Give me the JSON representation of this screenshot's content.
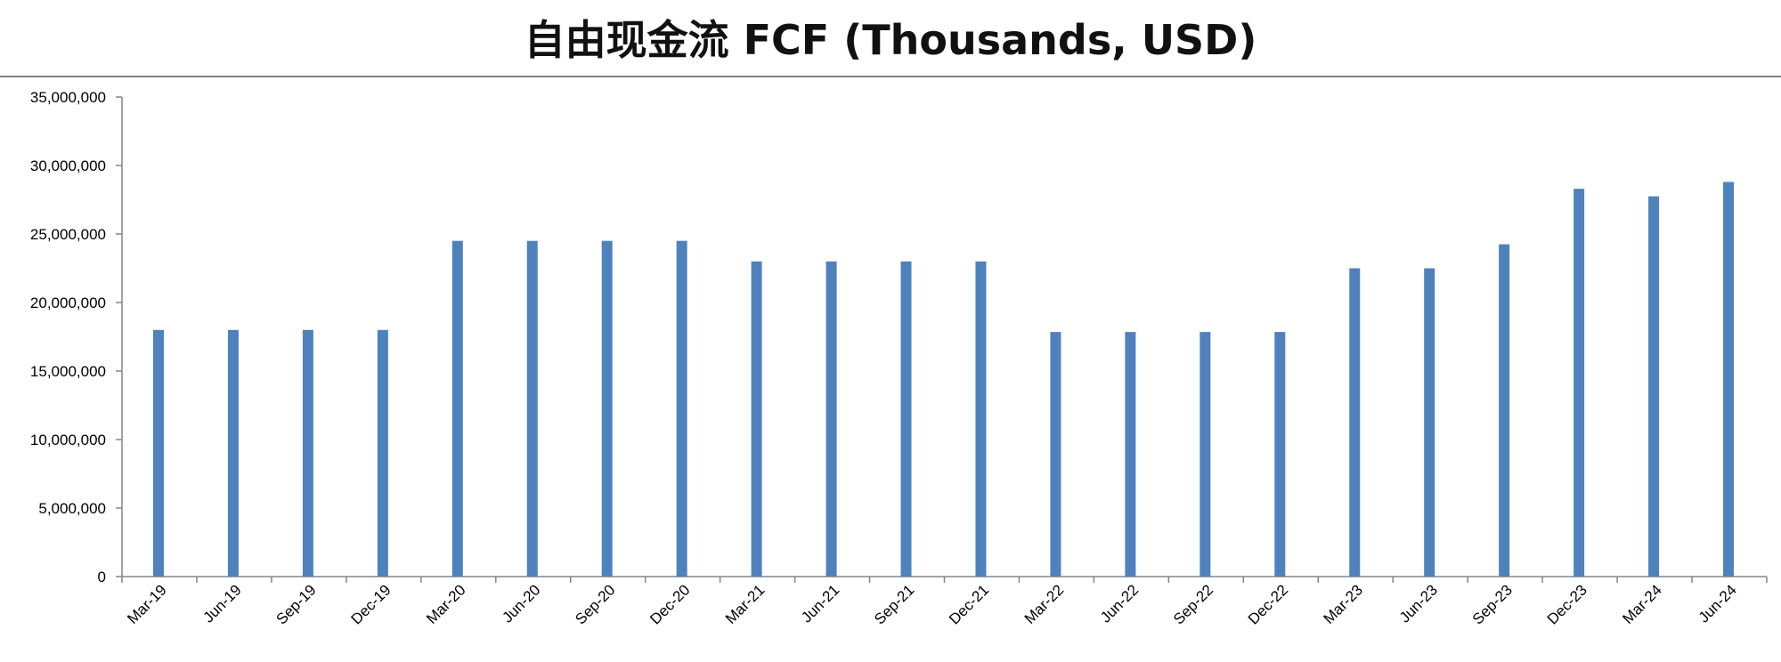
{
  "chart_data": {
    "type": "bar",
    "title": "自由现金流 FCF (Thousands, USD)",
    "xlabel": "",
    "ylabel": "",
    "categories": [
      "Mar-19",
      "Jun-19",
      "Sep-19",
      "Dec-19",
      "Mar-20",
      "Jun-20",
      "Sep-20",
      "Dec-20",
      "Mar-21",
      "Jun-21",
      "Sep-21",
      "Dec-21",
      "Mar-22",
      "Jun-22",
      "Sep-22",
      "Dec-22",
      "Mar-23",
      "Jun-23",
      "Sep-23",
      "Dec-23",
      "Mar-24",
      "Jun-24"
    ],
    "values": [
      18000000,
      18000000,
      18000000,
      18000000,
      24500000,
      24500000,
      24500000,
      24500000,
      23000000,
      23000000,
      23000000,
      23000000,
      17850000,
      17850000,
      17850000,
      17850000,
      22500000,
      22500000,
      24250000,
      28300000,
      27750000,
      28800000
    ],
    "ylim": [
      0,
      35000000
    ],
    "yticks": [
      0,
      5000000,
      10000000,
      15000000,
      20000000,
      25000000,
      30000000,
      35000000
    ],
    "ytick_labels": [
      "0",
      "5,000,000",
      "10,000,000",
      "15,000,000",
      "20,000,000",
      "25,000,000",
      "30,000,000",
      "35,000,000"
    ],
    "grid": false,
    "legend": "none",
    "bar_color": "#4f81bd"
  }
}
